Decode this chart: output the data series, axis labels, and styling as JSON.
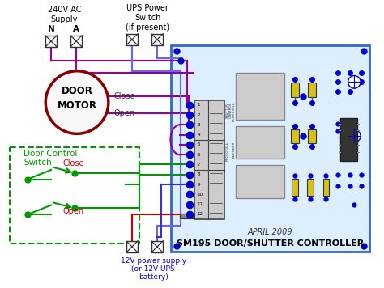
{
  "bg_color": "#ffffff",
  "pcb_color": "#ddeeff",
  "pcb_border": "#3366cc",
  "motor_color": "#880000",
  "wire_purple": "#990099",
  "wire_blue": "#3333cc",
  "wire_blue2": "#6666ff",
  "wire_green": "#009900",
  "wire_red": "#cc0000",
  "terminal_color": "#0000cc",
  "text_color": "#000000",
  "label_240v": "240V AC\nSupply",
  "label_N": "N",
  "label_A": "A",
  "label_ups": "UPS Power\nSwitch\n(if present)",
  "label_door_motor": "DOOR\nMOTOR",
  "label_close": "Close",
  "label_open": "Open",
  "label_door_control": "Door Control\nSwitch",
  "label_close2": "Close",
  "label_open2": "Open",
  "label_12v": "12V power supply\n(or 12V UPS\nbattery)",
  "label_april": "APRIL 2009",
  "label_sm195": "SM195 DOOR/SHUTTER CONTROLLER",
  "figsize": [
    4.74,
    3.56
  ],
  "dpi": 100
}
